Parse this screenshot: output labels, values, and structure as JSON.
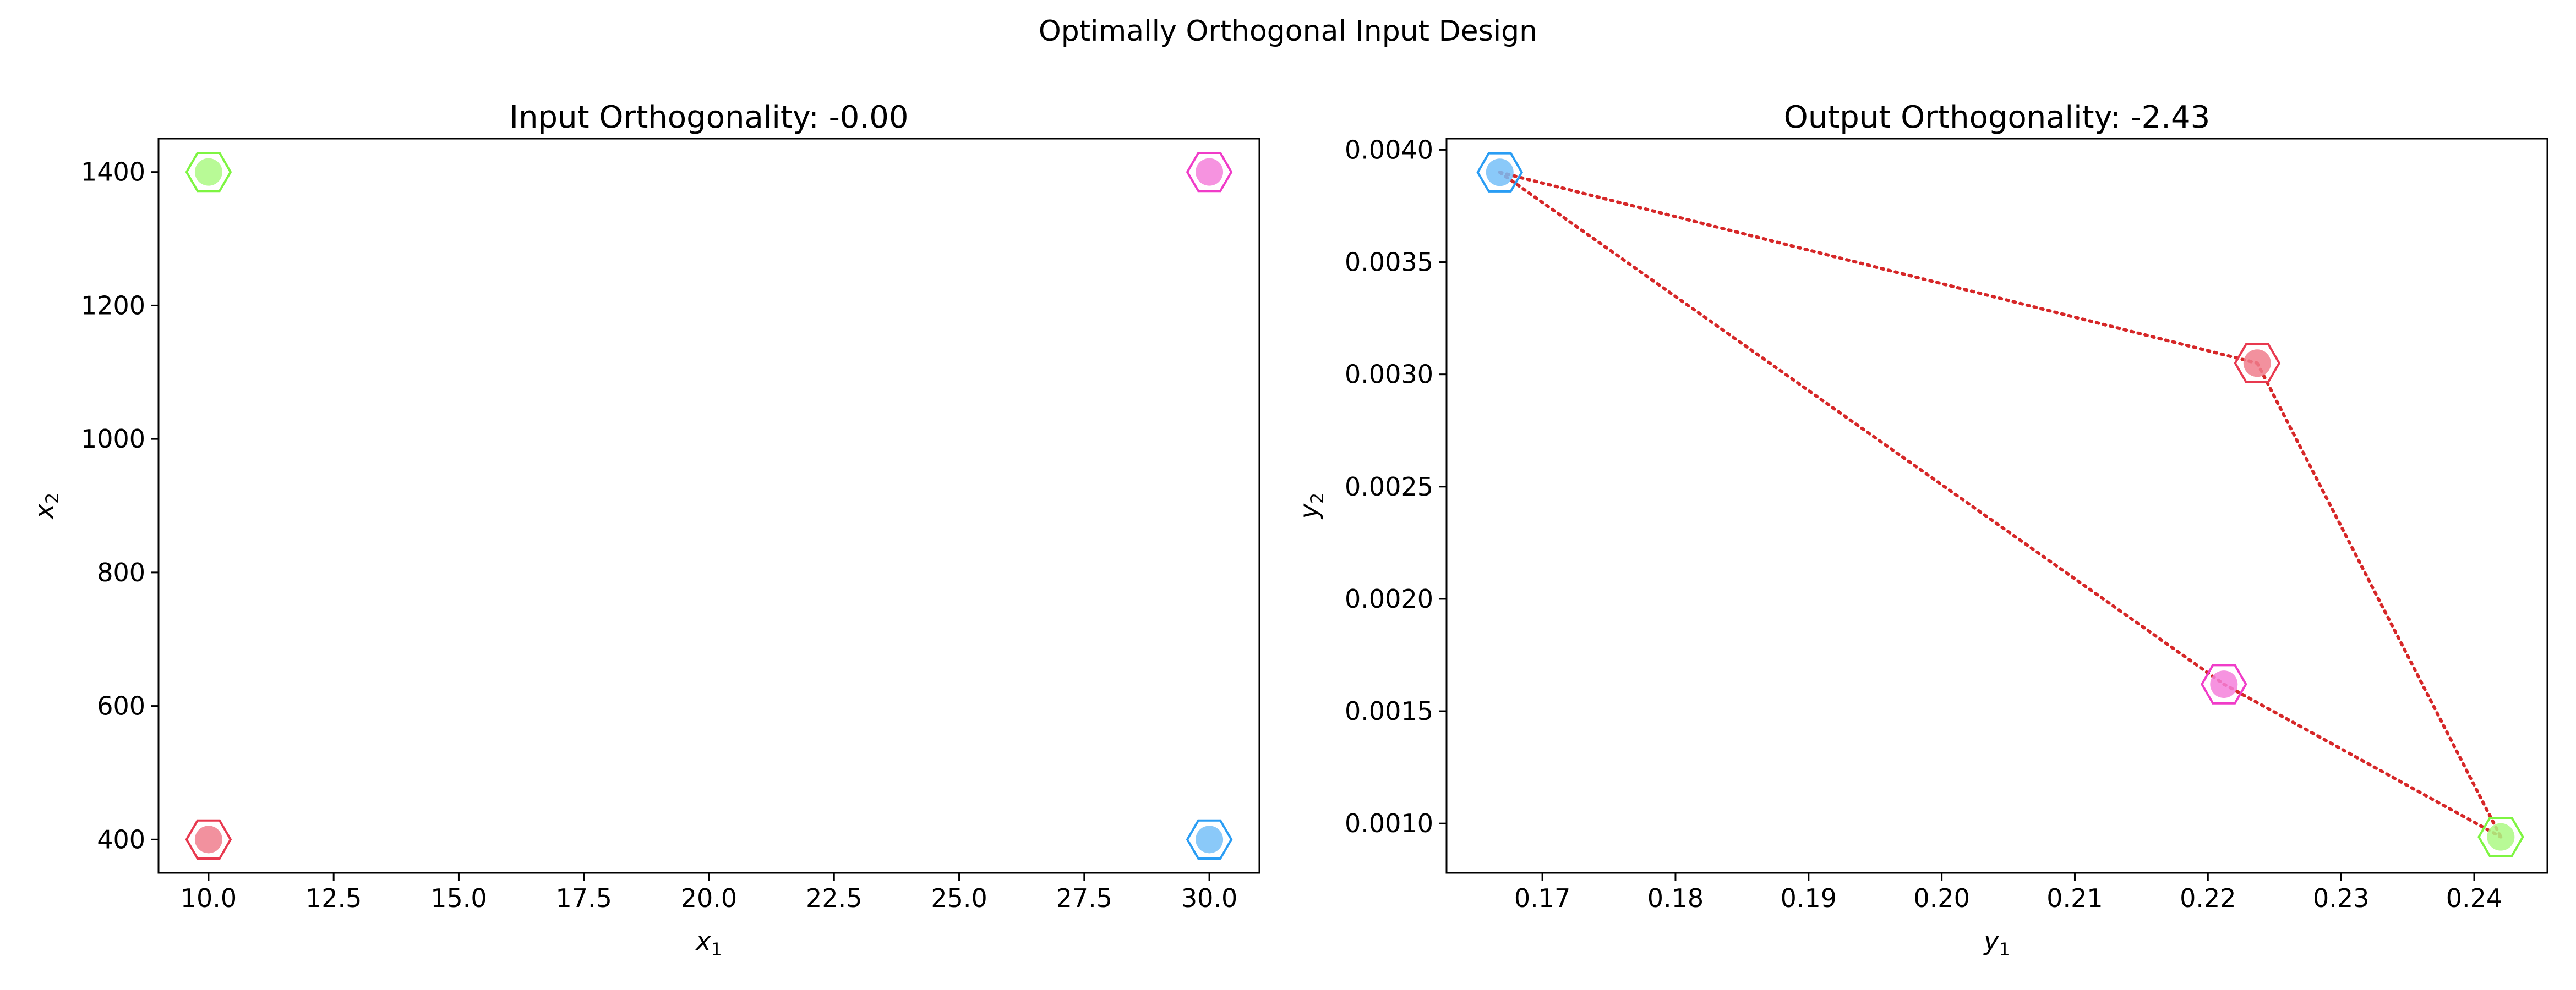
{
  "figure": {
    "suptitle": "Optimally Orthogonal Input Design"
  },
  "chart_data": [
    {
      "type": "scatter",
      "title": "Input Orthogonality: -0.00",
      "xlabel": "x",
      "xlabel_sub": "1",
      "ylabel": "x",
      "ylabel_sub": "2",
      "xlim": [
        9.0,
        31.0
      ],
      "ylim": [
        350,
        1450
      ],
      "xticks": [
        10.0,
        12.5,
        15.0,
        17.5,
        20.0,
        22.5,
        25.0,
        27.5,
        30.0
      ],
      "xtick_labels": [
        "10.0",
        "12.5",
        "15.0",
        "17.5",
        "20.0",
        "22.5",
        "25.0",
        "27.5",
        "30.0"
      ],
      "yticks": [
        400,
        600,
        800,
        1000,
        1200,
        1400
      ],
      "ytick_labels": [
        "400",
        "600",
        "800",
        "1000",
        "1200",
        "1400"
      ],
      "marker": "hexagon",
      "points": [
        {
          "x": 10,
          "y": 400,
          "color": "#e8394f"
        },
        {
          "x": 10,
          "y": 1400,
          "color": "#7ef542"
        },
        {
          "x": 30,
          "y": 1400,
          "color": "#f03cc8"
        },
        {
          "x": 30,
          "y": 400,
          "color": "#2a9df4"
        }
      ],
      "lines": []
    },
    {
      "type": "scatter",
      "title": "Output Orthogonality: -2.43",
      "xlabel": "y",
      "xlabel_sub": "1",
      "ylabel": "y",
      "ylabel_sub": "2",
      "xlim": [
        0.1628,
        0.2455
      ],
      "ylim": [
        0.00078,
        0.00405
      ],
      "xticks": [
        0.17,
        0.18,
        0.19,
        0.2,
        0.21,
        0.22,
        0.23,
        0.24
      ],
      "xtick_labels": [
        "0.17",
        "0.18",
        "0.19",
        "0.20",
        "0.21",
        "0.22",
        "0.23",
        "0.24"
      ],
      "yticks": [
        0.001,
        0.0015,
        0.002,
        0.0025,
        0.003,
        0.0035,
        0.004
      ],
      "ytick_labels": [
        "0.0010",
        "0.0015",
        "0.0020",
        "0.0025",
        "0.0030",
        "0.0035",
        "0.0040"
      ],
      "marker": "hexagon",
      "points": [
        {
          "x": 0.1668,
          "y": 0.0039,
          "color": "#2a9df4"
        },
        {
          "x": 0.2237,
          "y": 0.00305,
          "color": "#e8394f"
        },
        {
          "x": 0.2212,
          "y": 0.00162,
          "color": "#f03cc8"
        },
        {
          "x": 0.242,
          "y": 0.00094,
          "color": "#7ef542"
        }
      ],
      "lines": [
        {
          "from": [
            0.1668,
            0.0039
          ],
          "to": [
            0.2237,
            0.00305
          ],
          "color": "#d62728",
          "style": "dotted"
        },
        {
          "from": [
            0.2237,
            0.00305
          ],
          "to": [
            0.242,
            0.00094
          ],
          "color": "#d62728",
          "style": "dotted"
        },
        {
          "from": [
            0.1668,
            0.0039
          ],
          "to": [
            0.2212,
            0.00162
          ],
          "color": "#d62728",
          "style": "dotted"
        },
        {
          "from": [
            0.2212,
            0.00162
          ],
          "to": [
            0.242,
            0.00094
          ],
          "color": "#d62728",
          "style": "dotted"
        }
      ]
    }
  ]
}
